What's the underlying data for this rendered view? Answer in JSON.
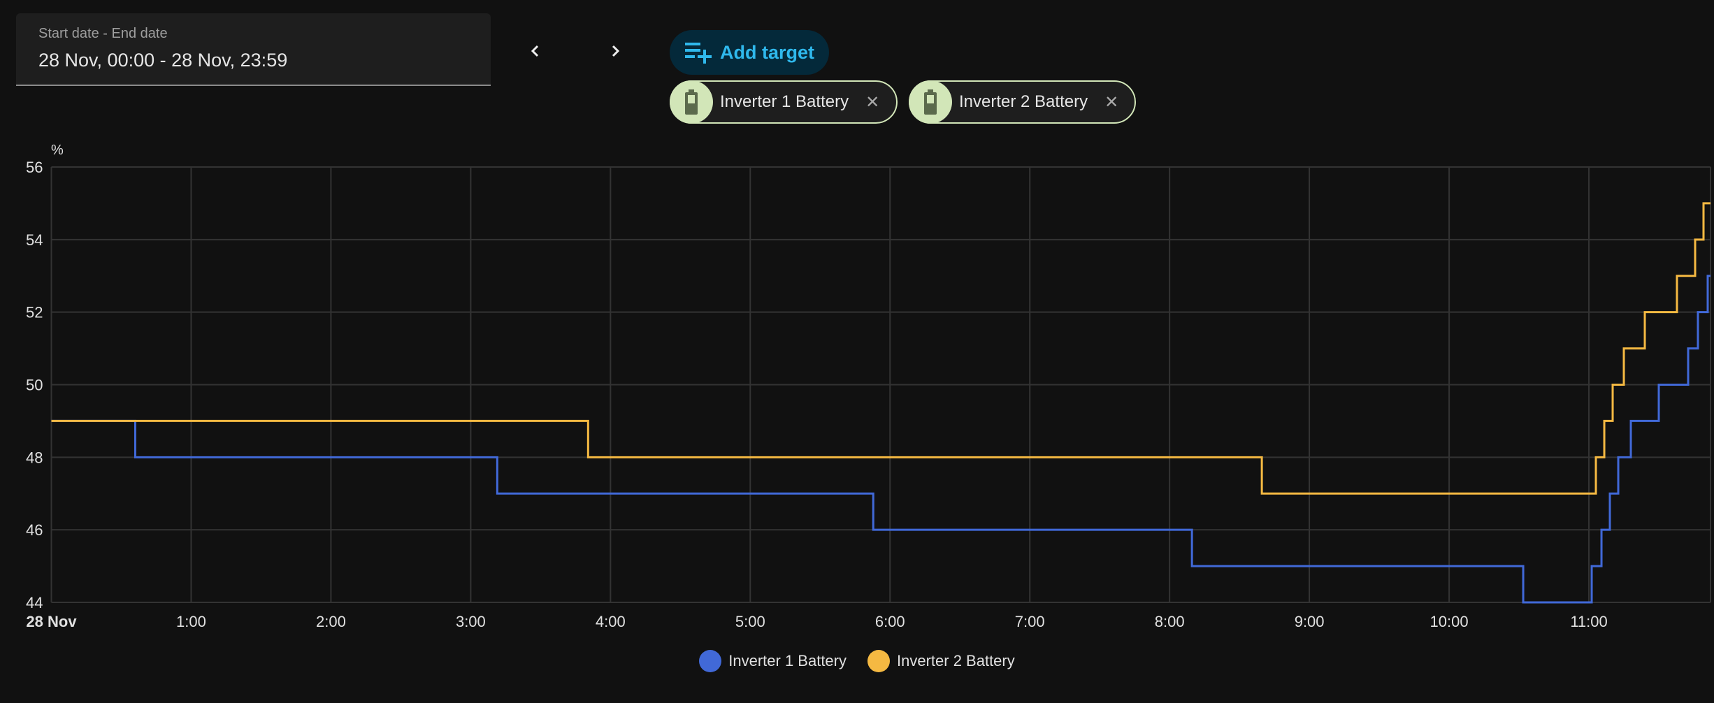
{
  "date_picker": {
    "label": "Start date - End date",
    "value": "28 Nov, 00:00 - 28 Nov, 23:59"
  },
  "nav": {
    "prev_icon": "chevron-left-icon",
    "next_icon": "chevron-right-icon"
  },
  "add_target": {
    "label": "Add target",
    "icon": "playlist-plus-icon"
  },
  "chips": [
    {
      "label": "Inverter 1 Battery",
      "icon": "battery-icon",
      "remove_icon": "close-icon"
    },
    {
      "label": "Inverter 2 Battery",
      "icon": "battery-icon",
      "remove_icon": "close-icon"
    }
  ],
  "colors": {
    "series1": "#4169d8",
    "series2": "#f5b942",
    "chip_bg": "#d2e6b8",
    "accent": "#2fb8ec"
  },
  "chart_data": {
    "type": "line",
    "step": true,
    "ylabel": "%",
    "ylim": [
      44,
      56
    ],
    "yticks": [
      "44",
      "46",
      "48",
      "50",
      "52",
      "54",
      "56"
    ],
    "xlim_hours": [
      0,
      11.87
    ],
    "xticks": [
      {
        "h": 0,
        "label": "28 Nov"
      },
      {
        "h": 1,
        "label": "1:00"
      },
      {
        "h": 2,
        "label": "2:00"
      },
      {
        "h": 3,
        "label": "3:00"
      },
      {
        "h": 4,
        "label": "4:00"
      },
      {
        "h": 5,
        "label": "5:00"
      },
      {
        "h": 6,
        "label": "6:00"
      },
      {
        "h": 7,
        "label": "7:00"
      },
      {
        "h": 8,
        "label": "8:00"
      },
      {
        "h": 9,
        "label": "9:00"
      },
      {
        "h": 10,
        "label": "10:00"
      },
      {
        "h": 11,
        "label": "11:00"
      }
    ],
    "grid": true,
    "legend_position": "bottom-center",
    "series": [
      {
        "name": "Inverter 1 Battery",
        "points": [
          [
            0,
            49
          ],
          [
            0.6,
            48
          ],
          [
            3.19,
            47
          ],
          [
            5.88,
            46
          ],
          [
            8.16,
            45
          ],
          [
            10.53,
            44
          ],
          [
            11.02,
            45
          ],
          [
            11.09,
            46
          ],
          [
            11.15,
            47
          ],
          [
            11.21,
            48
          ],
          [
            11.3,
            49
          ],
          [
            11.5,
            50
          ],
          [
            11.71,
            51
          ],
          [
            11.78,
            52
          ],
          [
            11.85,
            53
          ],
          [
            11.87,
            53
          ]
        ]
      },
      {
        "name": "Inverter 2 Battery",
        "points": [
          [
            0,
            49
          ],
          [
            3.84,
            48
          ],
          [
            8.66,
            47
          ],
          [
            11.05,
            48
          ],
          [
            11.11,
            49
          ],
          [
            11.17,
            50
          ],
          [
            11.25,
            51
          ],
          [
            11.4,
            52
          ],
          [
            11.63,
            53
          ],
          [
            11.76,
            54
          ],
          [
            11.82,
            55
          ],
          [
            11.87,
            55
          ]
        ]
      }
    ]
  }
}
